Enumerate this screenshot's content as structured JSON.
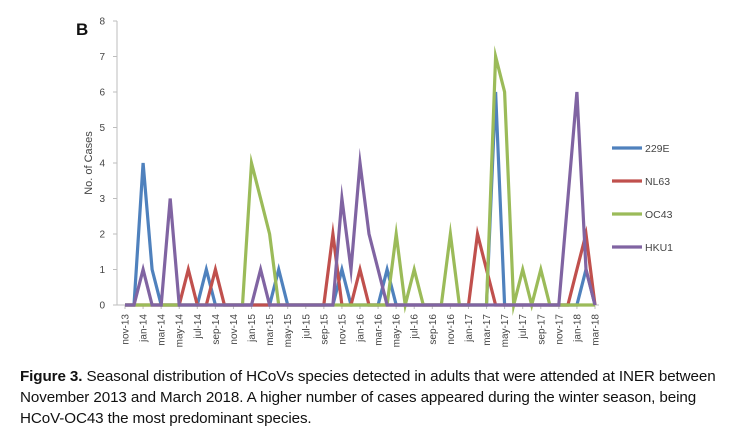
{
  "panel_label": "B",
  "caption": {
    "label": "Figure 3.",
    "text": "Seasonal distribution of HCoVs species detected in adults that were attended at INER between November 2013 and March 2018. A higher number of cases appeared during the winter season, being HCoV-OC43 the most predominant species."
  },
  "chart_data": {
    "type": "line",
    "title": "",
    "xlabel": "",
    "ylabel": "No. of Cases",
    "ylim": [
      0,
      8
    ],
    "yticks": [
      0,
      1,
      2,
      3,
      4,
      5,
      6,
      7,
      8
    ],
    "grid": false,
    "legend_position": "right",
    "x": [
      "nov-13",
      "dec-13",
      "jan-14",
      "feb-14",
      "mar-14",
      "apr-14",
      "may-14",
      "jun-14",
      "jul-14",
      "aug-14",
      "sep-14",
      "oct-14",
      "nov-14",
      "dec-14",
      "jan-15",
      "feb-15",
      "mar-15",
      "apr-15",
      "may-15",
      "jun-15",
      "jul-15",
      "aug-15",
      "sep-15",
      "oct-15",
      "nov-15",
      "dec-15",
      "jan-16",
      "feb-16",
      "mar-16",
      "apr-16",
      "may-16",
      "jun-16",
      "jul-16",
      "aug-16",
      "sep-16",
      "oct-16",
      "nov-16",
      "dec-16",
      "jan-17",
      "feb-17",
      "mar-17",
      "apr-17",
      "may-17",
      "jun-17",
      "jul-17",
      "aug-17",
      "sep-17",
      "oct-17",
      "nov-17",
      "dec-17",
      "jan-18",
      "feb-18",
      "mar-18"
    ],
    "xtick_labels": [
      "nov-13",
      "jan-14",
      "mar-14",
      "may-14",
      "jul-14",
      "sep-14",
      "nov-14",
      "jan-15",
      "mar-15",
      "may-15",
      "jul-15",
      "sep-15",
      "nov-15",
      "jan-16",
      "mar-16",
      "may-16",
      "jul-16",
      "sep-16",
      "nov-16",
      "jan-17",
      "mar-17",
      "may-17",
      "jul-17",
      "sep-17",
      "nov-17",
      "jan-18",
      "mar-18"
    ],
    "series": [
      {
        "name": "229E",
        "color": "#4f81bd",
        "values": [
          0,
          0,
          4,
          1,
          0,
          0,
          0,
          0,
          0,
          1,
          0,
          0,
          0,
          0,
          0,
          0,
          0,
          1,
          0,
          0,
          0,
          0,
          0,
          0,
          1,
          0,
          0,
          0,
          0,
          1,
          0,
          0,
          0,
          0,
          0,
          0,
          0,
          0,
          0,
          0,
          0,
          6,
          0,
          0,
          0,
          0,
          0,
          0,
          0,
          0,
          0,
          1,
          0
        ]
      },
      {
        "name": "NL63",
        "color": "#c0504d",
        "values": [
          0,
          0,
          0,
          0,
          0,
          0,
          0,
          1,
          0,
          0,
          1,
          0,
          0,
          0,
          0,
          0,
          0,
          0,
          0,
          0,
          0,
          0,
          0,
          2,
          0,
          0,
          1,
          0,
          0,
          0,
          0,
          0,
          0,
          0,
          0,
          0,
          0,
          0,
          0,
          2,
          1,
          0,
          0,
          0,
          0,
          0,
          0,
          0,
          0,
          0,
          1,
          2,
          0
        ]
      },
      {
        "name": "OC43",
        "color": "#9bbb59",
        "values": [
          0,
          0,
          0,
          0,
          0,
          0,
          0,
          0,
          0,
          0,
          0,
          0,
          0,
          0,
          4,
          3,
          2,
          0,
          0,
          0,
          0,
          0,
          0,
          0,
          0,
          0,
          0,
          0,
          0,
          0,
          2,
          0,
          1,
          0,
          0,
          0,
          2,
          0,
          0,
          0,
          0,
          7,
          6,
          0,
          1,
          0,
          1,
          0,
          0,
          0,
          0,
          0,
          0
        ]
      },
      {
        "name": "HKU1",
        "color": "#8064a2",
        "values": [
          0,
          0,
          1,
          0,
          0,
          3,
          0,
          0,
          0,
          0,
          0,
          0,
          0,
          0,
          0,
          1,
          0,
          0,
          0,
          0,
          0,
          0,
          0,
          0,
          3,
          1,
          4,
          2,
          1,
          0,
          0,
          0,
          0,
          0,
          0,
          0,
          0,
          0,
          0,
          0,
          0,
          0,
          0,
          0,
          0,
          0,
          0,
          0,
          0,
          3,
          6,
          1,
          0
        ]
      }
    ]
  }
}
